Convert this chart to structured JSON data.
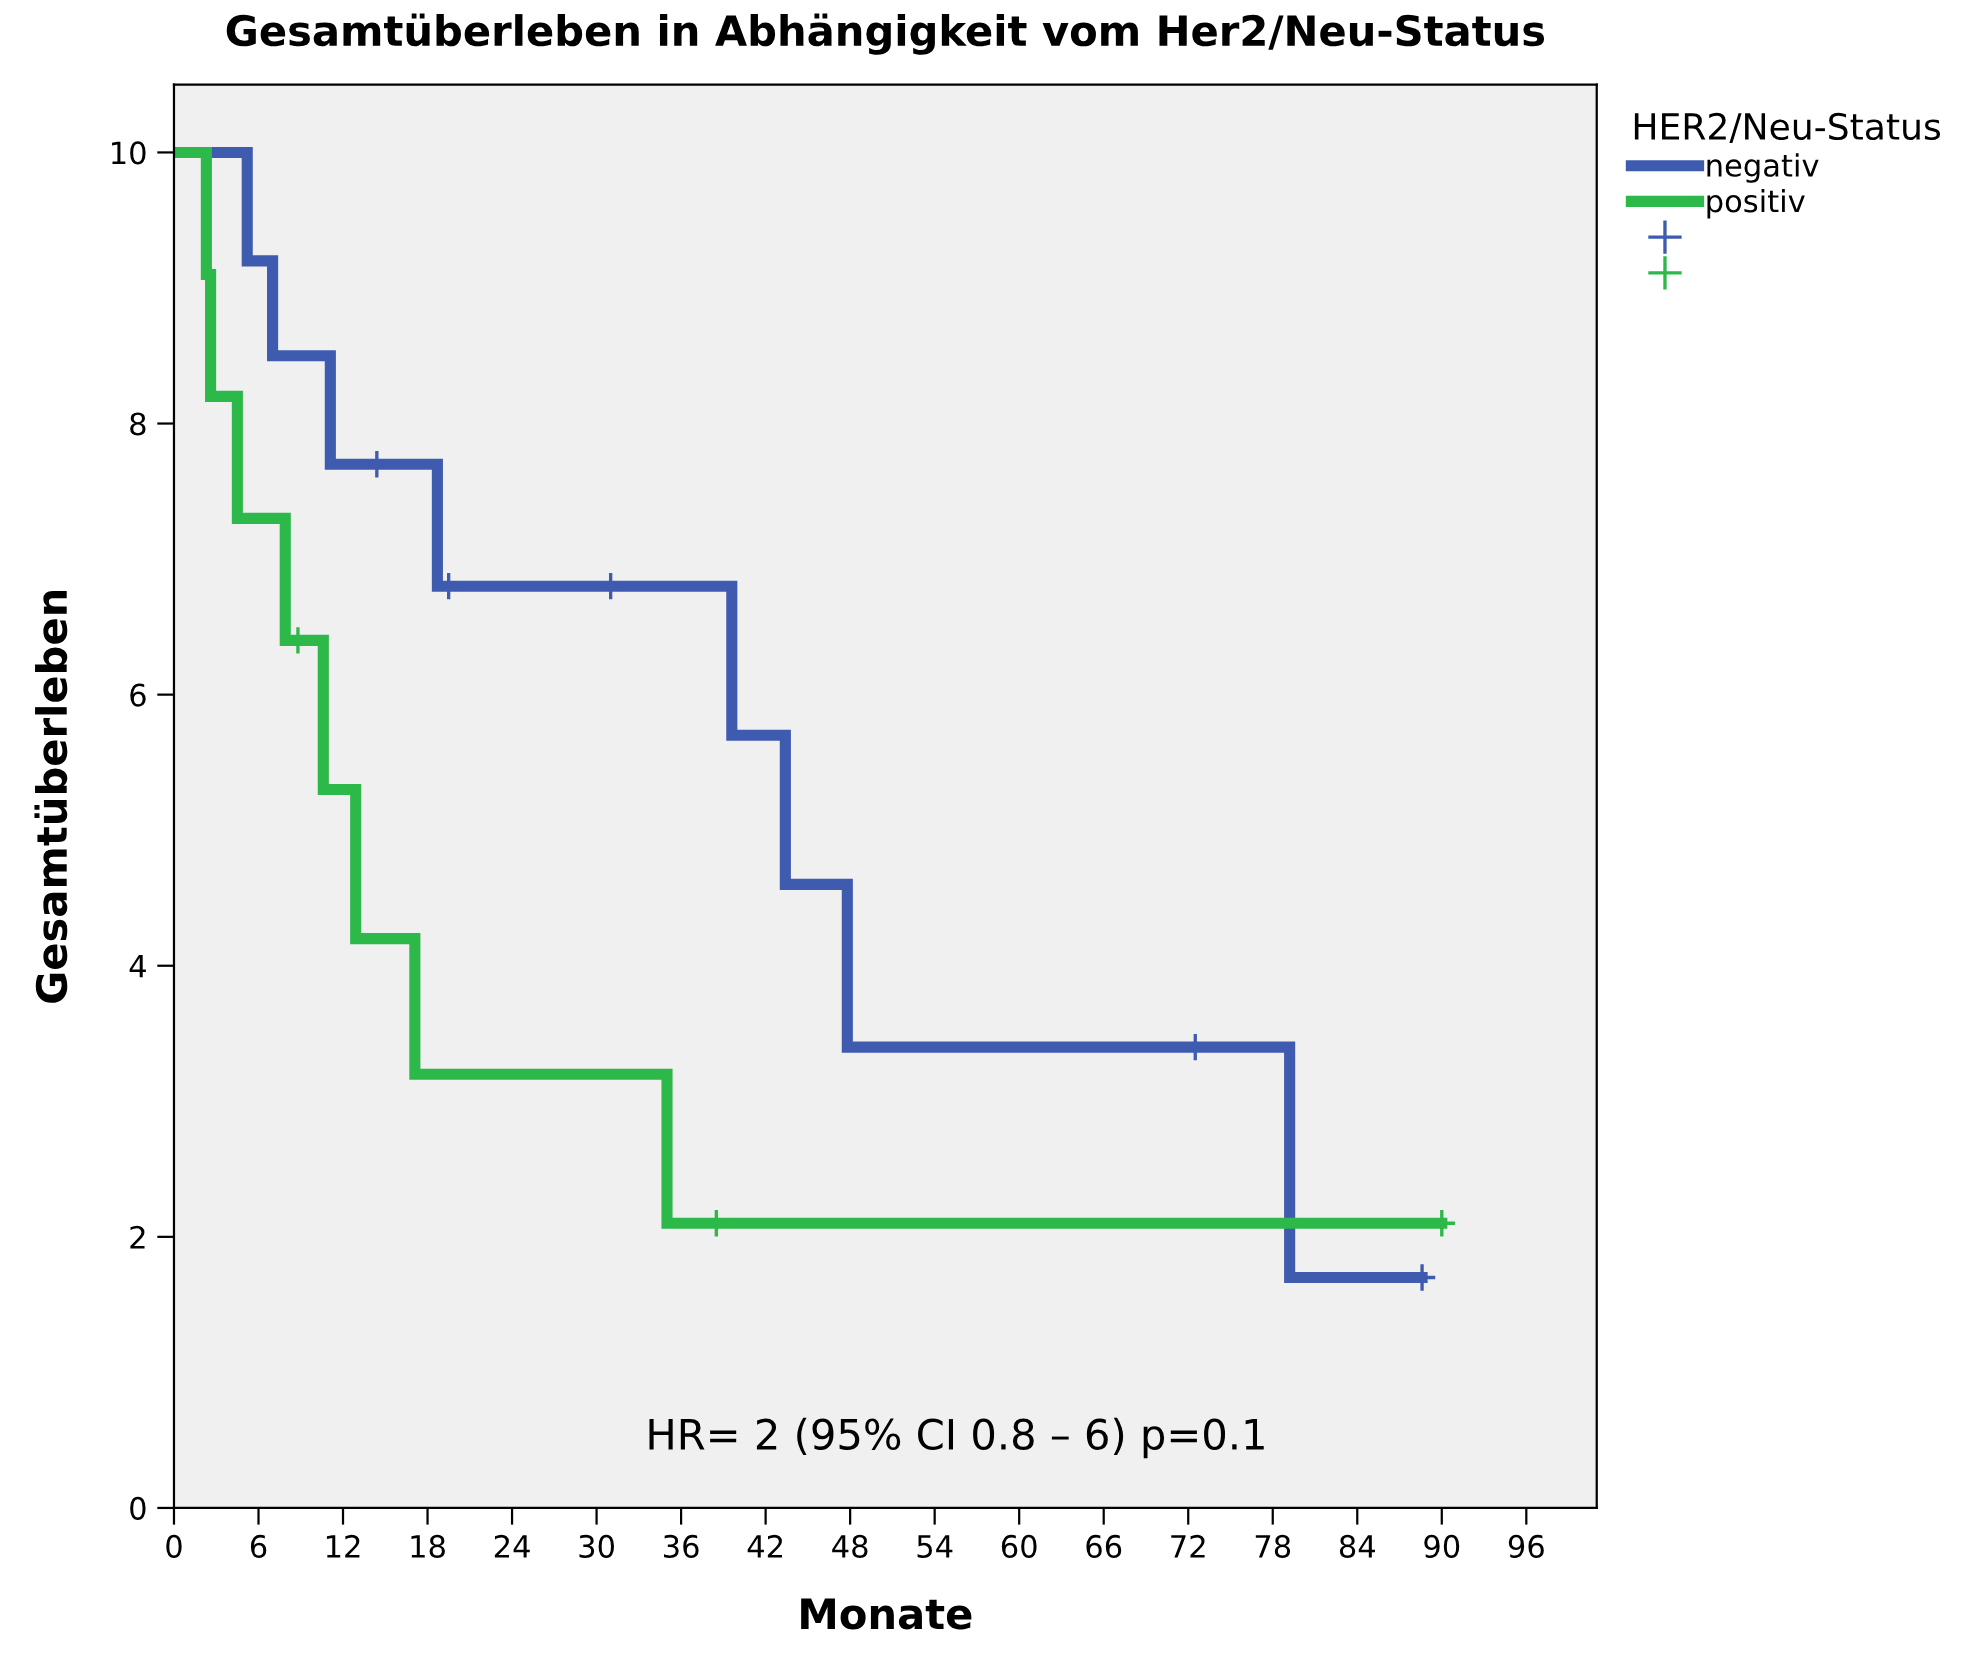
{
  "chart_data": {
    "type": "step",
    "title": "Gesamtüberleben in Abhängigkeit vom Her2/Neu-Status",
    "xlabel": "Monate",
    "ylabel": "Gesamtüberleben",
    "legend_title": "HER2/Neu-Status",
    "annotations": [
      "HR= 2 (95% CI 0.8 – 6) p=0.1"
    ],
    "series": [
      {
        "name": "negativ",
        "color": "#3f5bb0",
        "x": [
          0,
          5.2,
          7.0,
          11.1,
          18.7,
          39.6,
          43.4,
          47.8,
          79.2,
          88.6
        ],
        "values": [
          10,
          9.2,
          8.5,
          7.7,
          6.8,
          5.7,
          4.6,
          3.4,
          1.7,
          1.7
        ]
      },
      {
        "name": "positiv",
        "color": "#2db84a",
        "x": [
          0,
          2.3,
          2.6,
          4.5,
          7.9,
          10.6,
          12.9,
          17.1,
          35.0,
          90.0
        ],
        "values": [
          10,
          9.1,
          8.2,
          7.3,
          6.4,
          5.3,
          4.2,
          3.2,
          2.1,
          2.1
        ]
      },
      {
        "type": "scatter",
        "marker": "cross",
        "color": "#3f5bb0",
        "x": [
          14.4,
          19.5,
          31.0,
          72.5,
          88.6
        ],
        "values": [
          7.7,
          6.8,
          6.8,
          3.4,
          1.7
        ]
      },
      {
        "type": "scatter",
        "marker": "cross",
        "color": "#2db84a",
        "x": [
          8.8,
          38.5,
          90.0
        ],
        "values": [
          6.4,
          2.1,
          2.1
        ]
      }
    ],
    "xlim": [
      0,
      101
    ],
    "ylim": [
      0,
      10.5
    ],
    "xticks": [
      0,
      6,
      12,
      18,
      24,
      30,
      36,
      42,
      48,
      54,
      60,
      66,
      72,
      78,
      84,
      90,
      96
    ],
    "yticks": [
      0,
      2,
      4,
      6,
      8,
      10
    ],
    "grid": false,
    "legend": "right"
  }
}
